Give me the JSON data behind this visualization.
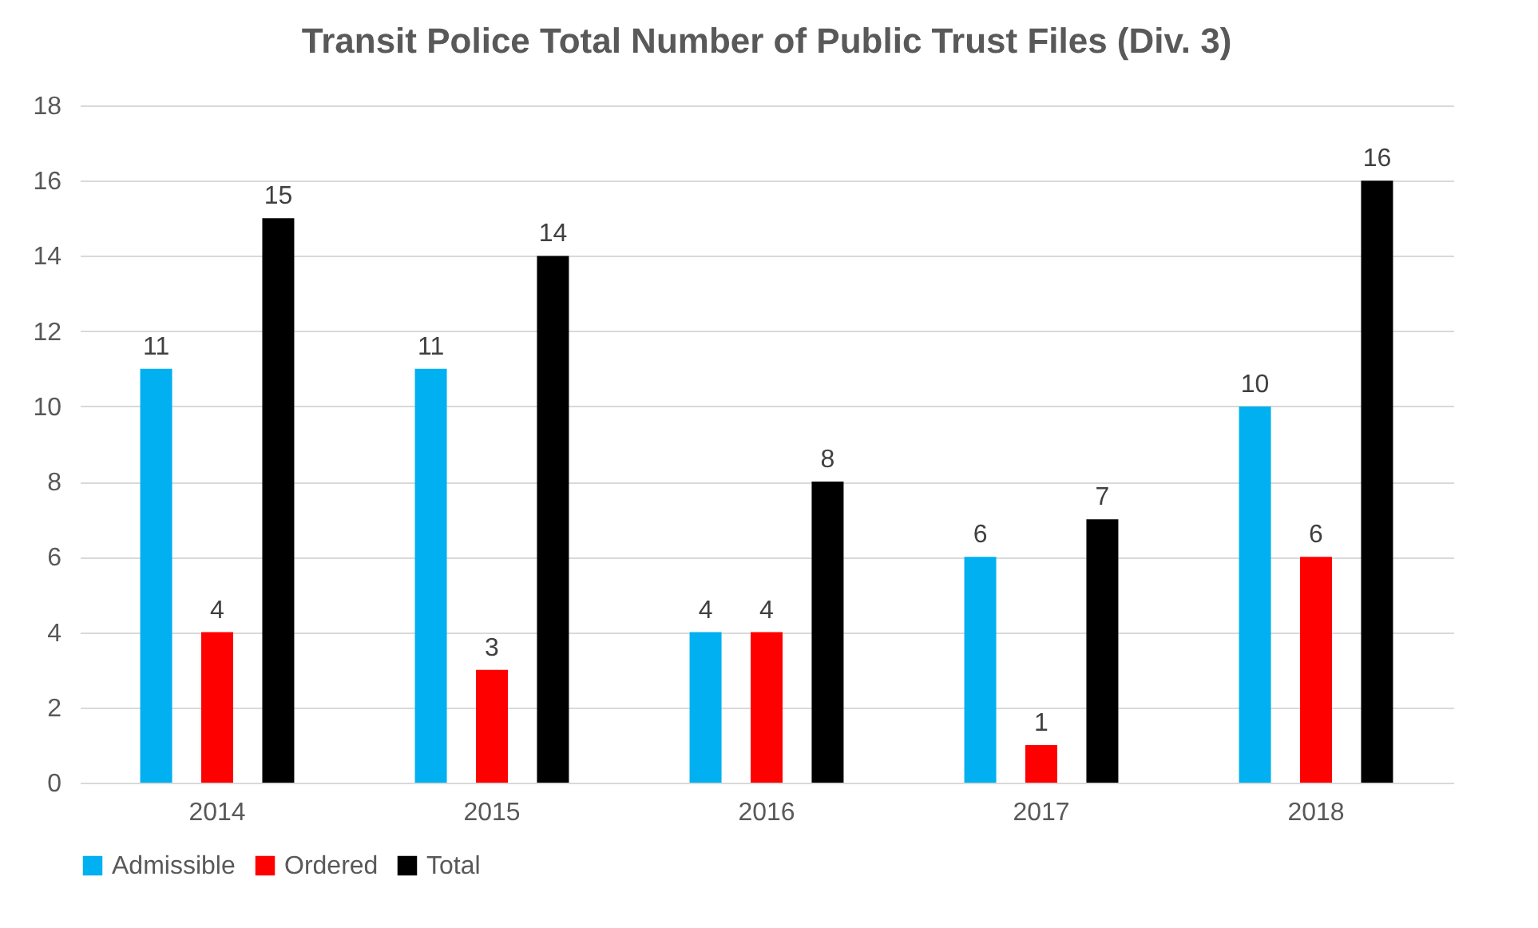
{
  "chart_data": {
    "type": "bar",
    "title": "Transit Police Total Number of Public Trust Files (Div. 3)",
    "categories": [
      "2014",
      "2015",
      "2016",
      "2017",
      "2018"
    ],
    "series": [
      {
        "name": "Admissible",
        "color": "#00b0f0",
        "values": [
          11,
          11,
          4,
          6,
          10
        ]
      },
      {
        "name": "Ordered",
        "color": "#ff0000",
        "values": [
          4,
          3,
          4,
          1,
          6
        ]
      },
      {
        "name": "Total",
        "color": "#000000",
        "values": [
          15,
          14,
          8,
          7,
          16
        ]
      }
    ],
    "ylim": [
      0,
      18
    ],
    "yticks": [
      0,
      2,
      4,
      6,
      8,
      10,
      12,
      14,
      16,
      18
    ],
    "grid": "y",
    "legend": "bottom",
    "data_labels": true
  }
}
